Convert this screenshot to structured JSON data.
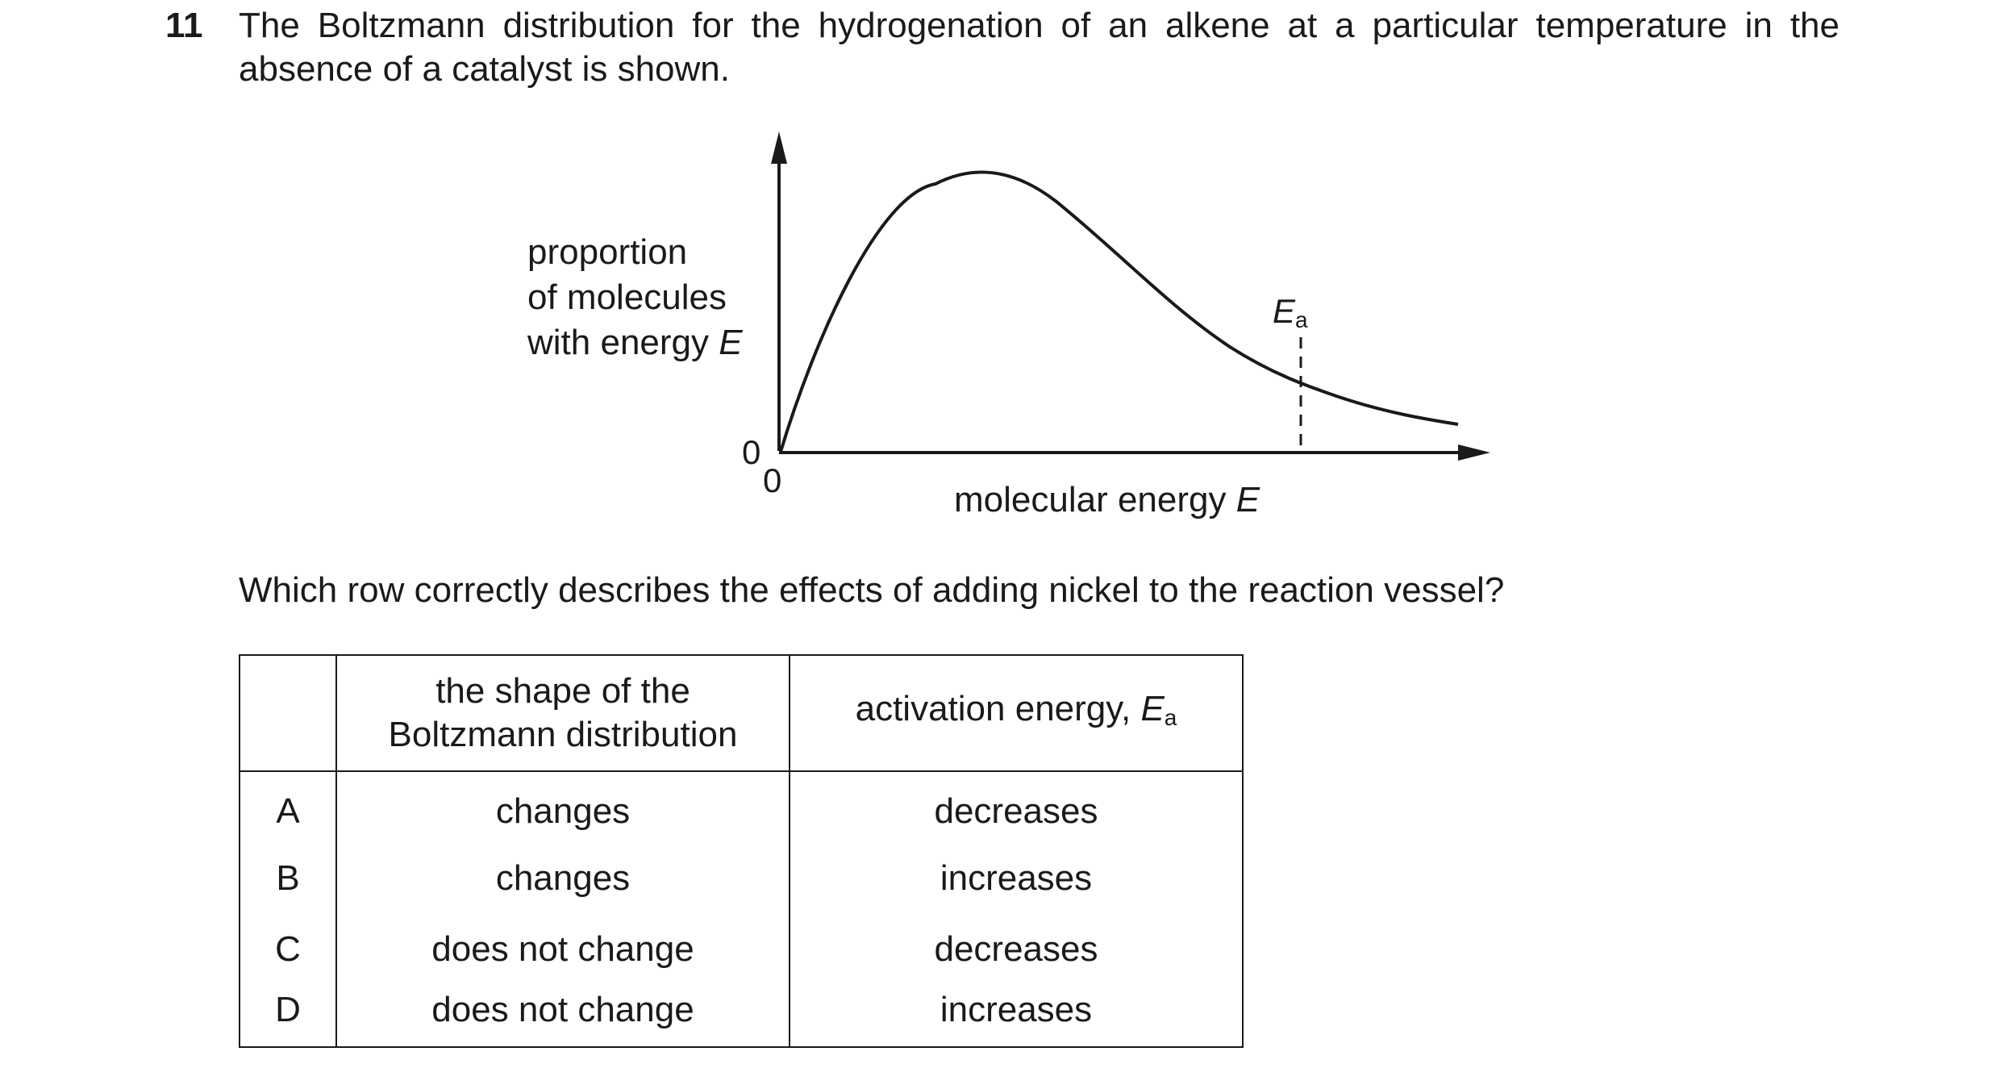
{
  "question": {
    "number": "11",
    "stem_line1": "The Boltzmann distribution for the hydrogenation of an alkene at a particular temperature in the",
    "stem_line2": "absence of a catalyst is shown.",
    "prompt": "Which row correctly describes the effects of adding nickel to the reaction vessel?"
  },
  "graph": {
    "y_axis_label": [
      "proportion",
      "of molecules",
      "with energy "
    ],
    "y_axis_label_var": "E",
    "x_axis_label": "molecular energy ",
    "x_axis_label_var": "E",
    "origin_y": "0",
    "origin_x": "0",
    "ea_symbol": "E",
    "ea_subscript": "a",
    "curve_shape": "Boltzmann distribution curve",
    "ea_marker": "dashed vertical line"
  },
  "table": {
    "headers": {
      "shape_line1": "the shape of the",
      "shape_line2": "Boltzmann distribution",
      "ea": "activation energy, ",
      "ea_symbol": "E",
      "ea_subscript": "a"
    },
    "rows": [
      {
        "letter": "A",
        "shape": "changes",
        "ea": "decreases"
      },
      {
        "letter": "B",
        "shape": "changes",
        "ea": "increases"
      },
      {
        "letter": "C",
        "shape": "does not change",
        "ea": "decreases"
      },
      {
        "letter": "D",
        "shape": "does not change",
        "ea": "increases"
      }
    ]
  },
  "colors": {
    "ink": "#1a1a1a",
    "background": "#ffffff"
  }
}
